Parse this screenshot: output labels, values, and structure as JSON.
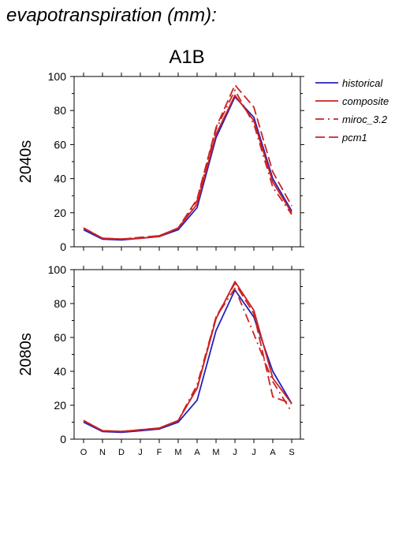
{
  "chart_data": {
    "type": "line",
    "title": "evapotranspiration (mm):",
    "subtitle": "A1B",
    "categories": [
      "O",
      "N",
      "D",
      "J",
      "F",
      "M",
      "A",
      "M",
      "J",
      "J",
      "A",
      "S"
    ],
    "ylim": [
      0,
      100
    ],
    "yticks": [
      0,
      20,
      40,
      60,
      80,
      100
    ],
    "grid": false,
    "legend_position": "top-right",
    "legend": [
      {
        "name": "historical",
        "color": "#2222bb",
        "dash": "solid"
      },
      {
        "name": "composite",
        "color": "#cc2222",
        "dash": "solid"
      },
      {
        "name": "miroc_3.2",
        "color": "#cc2222",
        "dash": "dashdot"
      },
      {
        "name": "pcm1",
        "color": "#cc2222",
        "dash": "dashed"
      }
    ],
    "panels": [
      {
        "label": "2040s",
        "series": [
          {
            "name": "historical",
            "values": [
              10,
              4.5,
              4,
              5,
              6,
              10,
              23,
              64,
              88,
              76,
              40,
              21
            ]
          },
          {
            "name": "composite",
            "values": [
              11,
              5,
              4.5,
              5,
              6,
              11,
              25,
              66,
              89,
              74,
              38,
              20
            ]
          },
          {
            "name": "miroc_3.2",
            "values": [
              11,
              5,
              4.5,
              5.5,
              6.5,
              11,
              27,
              69,
              92,
              72,
              35,
              19
            ]
          },
          {
            "name": "pcm1",
            "values": [
              11,
              5,
              4.5,
              5.5,
              6.5,
              11,
              28,
              70,
              95,
              82,
              44,
              24
            ]
          }
        ]
      },
      {
        "label": "2080s",
        "series": [
          {
            "name": "historical",
            "values": [
              10,
              4.5,
              4,
              5,
              6,
              10,
              23,
              64,
              88,
              72,
              40,
              21
            ]
          },
          {
            "name": "composite",
            "values": [
              11,
              5,
              4.5,
              5.5,
              6.5,
              11,
              30,
              71,
              93,
              76,
              36,
              21
            ]
          },
          {
            "name": "miroc_3.2",
            "values": [
              11,
              5,
              4.5,
              5.5,
              6.5,
              11,
              32,
              72,
              89,
              62,
              34,
              16
            ]
          },
          {
            "name": "pcm1",
            "values": [
              11,
              5,
              4.5,
              5.5,
              6.5,
              11,
              30,
              72,
              92,
              74,
              25,
              21
            ]
          }
        ]
      }
    ]
  }
}
